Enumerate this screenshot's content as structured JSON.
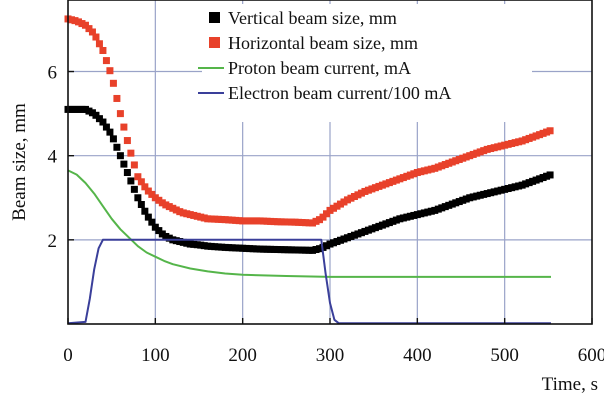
{
  "chart_data": {
    "type": "line",
    "title": "",
    "xlabel": "Time, s",
    "ylabel": "Beam size, mm",
    "xlim": [
      0,
      600
    ],
    "ylim": [
      0,
      7.7
    ],
    "xticks": [
      0,
      100,
      200,
      300,
      400,
      500,
      600
    ],
    "xtick_labels": [
      "0",
      "100",
      "200",
      "300",
      "400",
      "500",
      "600"
    ],
    "yticks": [
      2,
      4,
      6
    ],
    "ytick_labels": [
      "2",
      "4",
      "6"
    ],
    "grid": true,
    "legend_position": "top-right",
    "series": [
      {
        "name": "Vertical beam size, mm",
        "kind": "scatter",
        "marker": "square",
        "color": "#000000",
        "x": [
          0,
          10,
          20,
          30,
          40,
          50,
          60,
          70,
          80,
          90,
          100,
          110,
          120,
          130,
          140,
          150,
          160,
          180,
          200,
          220,
          240,
          260,
          280,
          290,
          300,
          320,
          340,
          360,
          380,
          400,
          420,
          440,
          460,
          480,
          500,
          520,
          540,
          553
        ],
        "y": [
          5.1,
          5.1,
          5.1,
          5.0,
          4.8,
          4.5,
          4.0,
          3.5,
          3.0,
          2.6,
          2.3,
          2.1,
          2.0,
          1.95,
          1.9,
          1.88,
          1.85,
          1.82,
          1.8,
          1.78,
          1.77,
          1.76,
          1.75,
          1.8,
          1.9,
          2.05,
          2.2,
          2.35,
          2.5,
          2.6,
          2.7,
          2.85,
          3.0,
          3.1,
          3.2,
          3.3,
          3.45,
          3.55
        ]
      },
      {
        "name": "Horizontal beam size, mm",
        "kind": "scatter",
        "marker": "square",
        "color": "#e8412a",
        "x": [
          0,
          10,
          20,
          30,
          40,
          50,
          60,
          70,
          80,
          90,
          100,
          110,
          120,
          130,
          140,
          150,
          160,
          180,
          200,
          220,
          240,
          260,
          280,
          290,
          300,
          320,
          340,
          360,
          380,
          400,
          420,
          440,
          460,
          480,
          500,
          520,
          540,
          553
        ],
        "y": [
          7.25,
          7.2,
          7.1,
          6.9,
          6.5,
          5.9,
          5.0,
          4.2,
          3.5,
          3.2,
          3.0,
          2.85,
          2.75,
          2.65,
          2.6,
          2.55,
          2.5,
          2.48,
          2.45,
          2.45,
          2.43,
          2.42,
          2.4,
          2.5,
          2.7,
          2.95,
          3.15,
          3.3,
          3.45,
          3.6,
          3.7,
          3.85,
          4.0,
          4.15,
          4.25,
          4.35,
          4.5,
          4.6
        ]
      },
      {
        "name": "Proton beam current, mA",
        "kind": "line",
        "color": "#55b54a",
        "x": [
          0,
          10,
          20,
          30,
          40,
          50,
          60,
          70,
          80,
          90,
          100,
          110,
          120,
          140,
          160,
          180,
          200,
          250,
          300,
          350,
          400,
          450,
          500,
          553
        ],
        "y": [
          3.65,
          3.55,
          3.35,
          3.1,
          2.8,
          2.5,
          2.25,
          2.05,
          1.85,
          1.7,
          1.6,
          1.5,
          1.42,
          1.32,
          1.25,
          1.2,
          1.17,
          1.14,
          1.12,
          1.12,
          1.12,
          1.12,
          1.12,
          1.12
        ]
      },
      {
        "name": "Electron beam current/100 mA",
        "kind": "line",
        "color": "#3a3f9a",
        "x": [
          0,
          20,
          25,
          30,
          35,
          40,
          280,
          290,
          295,
          300,
          305,
          310,
          553
        ],
        "y": [
          0.02,
          0.05,
          0.6,
          1.3,
          1.8,
          2.0,
          2.0,
          2.0,
          1.2,
          0.5,
          0.1,
          0.02,
          0.02
        ]
      }
    ]
  }
}
